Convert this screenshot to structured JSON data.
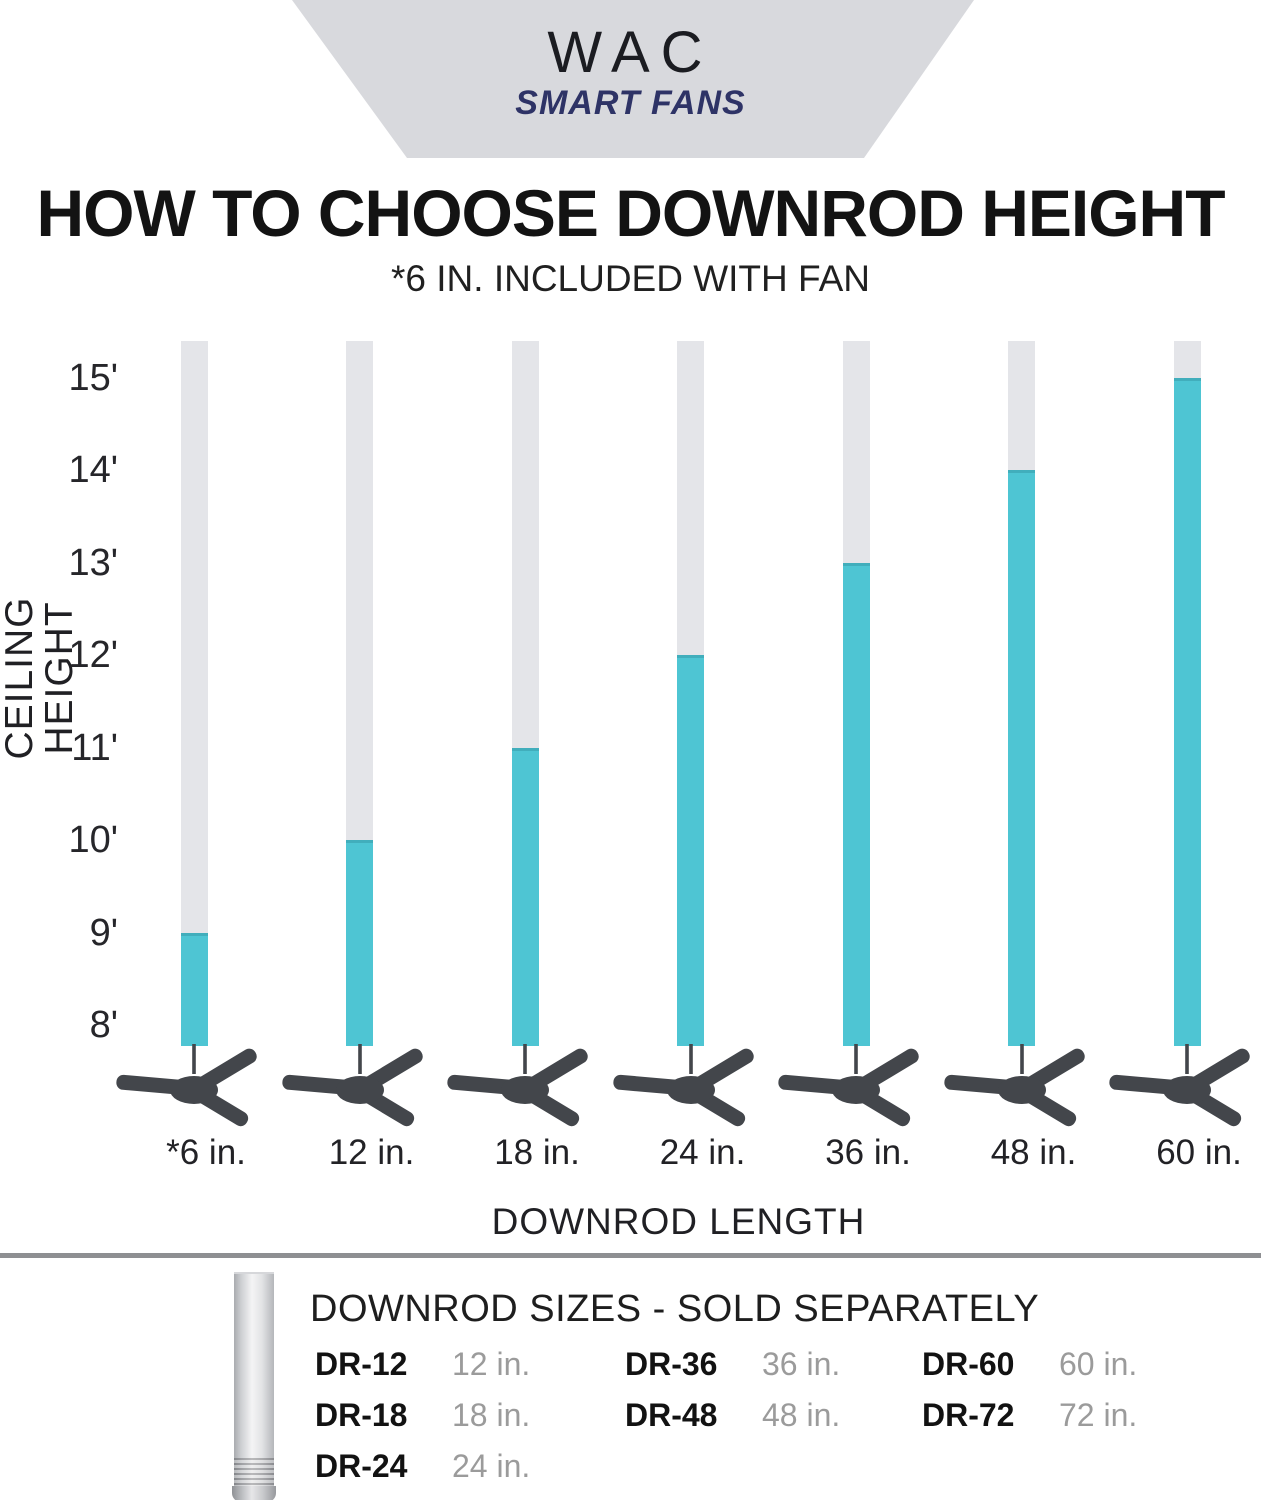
{
  "brand": {
    "name": "WAC",
    "tagline": "SMART FANS"
  },
  "title": "HOW TO CHOOSE DOWNROD HEIGHT",
  "subtitle": "*6 IN. INCLUDED WITH FAN",
  "chart_data": {
    "type": "bar",
    "title": "How to choose downrod height",
    "xlabel": "DOWNROD LENGTH",
    "ylabel": "CEILING HEIGHT",
    "categories": [
      "*6 in.",
      "12 in.",
      "18 in.",
      "24 in.",
      "36 in.",
      "48 in.",
      "60 in."
    ],
    "values": [
      9,
      10,
      11,
      12,
      13,
      14,
      15
    ],
    "values_unit": "feet of ceiling height",
    "y_ticks": [
      "15'",
      "14'",
      "13'",
      "12'",
      "11'",
      "10'",
      "9'",
      "8'"
    ],
    "ylim": [
      8,
      15
    ],
    "grid": false,
    "legend": false,
    "note": "Each bar pairs a downrod length with its recommended ceiling height; gray track extends above each highlighted bar and a ceiling fan hangs below each bar.",
    "colors": {
      "accent_teal": "#4ec5d3",
      "bar_track": "#e4e5e9",
      "fan_silhouette": "#43464b",
      "banner_bg": "#d8d9dd",
      "tagline_navy": "#2e3366",
      "divider_gray": "#8e8f92",
      "muted_text": "#9b9b9b"
    }
  },
  "footer": {
    "heading": "DOWNROD SIZES - SOLD SEPARATELY",
    "items": [
      {
        "code": "DR-12",
        "size": "12 in."
      },
      {
        "code": "DR-18",
        "size": "18 in."
      },
      {
        "code": "DR-24",
        "size": "24 in."
      },
      {
        "code": "DR-36",
        "size": "36 in."
      },
      {
        "code": "DR-48",
        "size": "48 in."
      },
      {
        "code": "DR-60",
        "size": "60 in."
      },
      {
        "code": "DR-72",
        "size": "72 in."
      }
    ]
  }
}
